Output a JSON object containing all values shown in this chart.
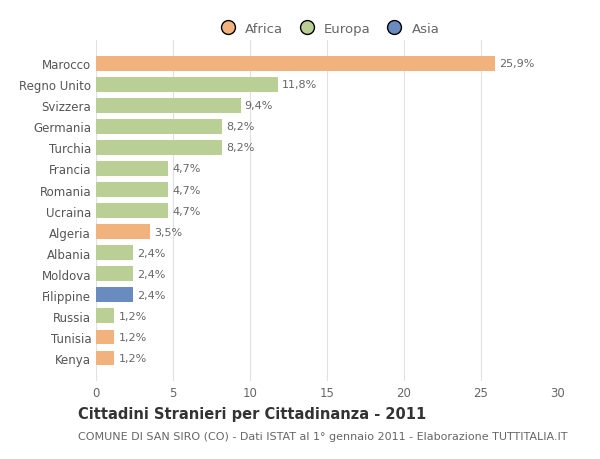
{
  "countries": [
    "Kenya",
    "Tunisia",
    "Russia",
    "Filippine",
    "Moldova",
    "Albania",
    "Algeria",
    "Ucraina",
    "Romania",
    "Francia",
    "Turchia",
    "Germania",
    "Svizzera",
    "Regno Unito",
    "Marocco"
  ],
  "values": [
    1.2,
    1.2,
    1.2,
    2.4,
    2.4,
    2.4,
    3.5,
    4.7,
    4.7,
    4.7,
    8.2,
    8.2,
    9.4,
    11.8,
    25.9
  ],
  "labels": [
    "1,2%",
    "1,2%",
    "1,2%",
    "2,4%",
    "2,4%",
    "2,4%",
    "3,5%",
    "4,7%",
    "4,7%",
    "4,7%",
    "8,2%",
    "8,2%",
    "9,4%",
    "11,8%",
    "25,9%"
  ],
  "continent": [
    "Africa",
    "Africa",
    "Europa",
    "Asia",
    "Europa",
    "Europa",
    "Africa",
    "Europa",
    "Europa",
    "Europa",
    "Europa",
    "Europa",
    "Europa",
    "Europa",
    "Africa"
  ],
  "colors": {
    "Africa": "#F2B27E",
    "Europa": "#BACF96",
    "Asia": "#6A8BBF"
  },
  "legend_order": [
    "Africa",
    "Europa",
    "Asia"
  ],
  "xlim": [
    0,
    30
  ],
  "xticks": [
    0,
    5,
    10,
    15,
    20,
    25,
    30
  ],
  "title": "Cittadini Stranieri per Cittadinanza - 2011",
  "subtitle": "COMUNE DI SAN SIRO (CO) - Dati ISTAT al 1° gennaio 2011 - Elaborazione TUTTITALIA.IT",
  "background_color": "#ffffff",
  "grid_color": "#e0e0e0",
  "bar_height": 0.7,
  "title_fontsize": 10.5,
  "subtitle_fontsize": 8,
  "label_fontsize": 8,
  "tick_fontsize": 8.5,
  "legend_fontsize": 9.5
}
